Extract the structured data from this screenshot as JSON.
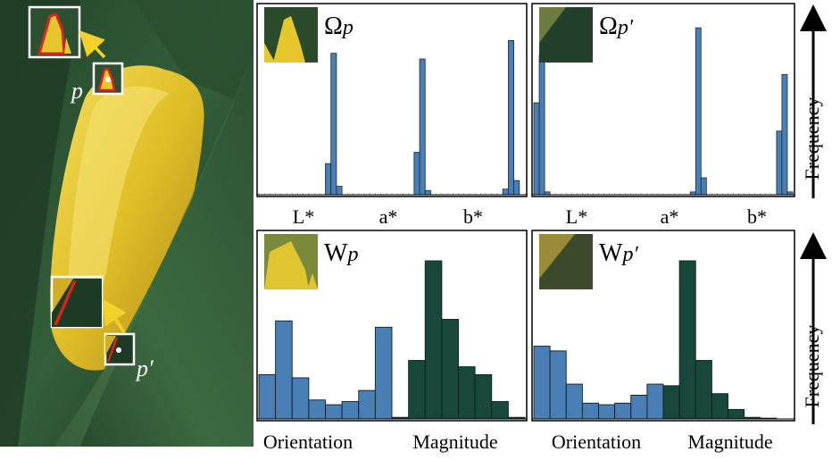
{
  "photo": {
    "label_p_main": "p",
    "label_p_prime": "′",
    "colors": {
      "leaf_dark": "#1d3a22",
      "leaf_mid": "#2f5a35",
      "petal": "#e6c72b",
      "petal_shadow": "#b8951a",
      "contour": "#d8231f",
      "arrow": "#f2d12a"
    }
  },
  "labels": {
    "omega": "Ω",
    "w": "W",
    "sub_p": "p",
    "prime": "′",
    "frequency": "Frequency"
  },
  "chart_data": [
    {
      "id": "omega-p",
      "type": "bar",
      "title_symbol": "Ω",
      "subscript": "p",
      "group_labels": [
        "L*",
        "a*",
        "b*"
      ],
      "bins_per_group": 16,
      "color": "#4a7fb5",
      "series": [
        {
          "group": "L*",
          "values": [
            0,
            0,
            0,
            0,
            0,
            0,
            0,
            0,
            0,
            0,
            0,
            0,
            0.22,
            1.0,
            0.06,
            0
          ]
        },
        {
          "group": "a*",
          "values": [
            0,
            0,
            0,
            0,
            0,
            0,
            0,
            0,
            0,
            0,
            0,
            0,
            0.3,
            0.96,
            0.03,
            0
          ]
        },
        {
          "group": "b*",
          "values": [
            0,
            0,
            0,
            0,
            0,
            0,
            0,
            0,
            0,
            0,
            0,
            0,
            0.04,
            1.09,
            0.1,
            0
          ]
        }
      ],
      "ylabel": "Frequency"
    },
    {
      "id": "omega-p-prime",
      "type": "bar",
      "title_symbol": "Ω",
      "subscript": "p′",
      "group_labels": [
        "L*",
        "a*",
        "b*"
      ],
      "bins_per_group": 16,
      "color": "#4a7fb5",
      "series": [
        {
          "group": "L*",
          "values": [
            0.65,
            0.99,
            0.02,
            0,
            0,
            0,
            0,
            0,
            0,
            0,
            0,
            0,
            0,
            0,
            0,
            0
          ]
        },
        {
          "group": "a*",
          "values": [
            0,
            0,
            0,
            0,
            0,
            0,
            0,
            0,
            0,
            0,
            0,
            0,
            0,
            0.02,
            1.18,
            0.12
          ]
        },
        {
          "group": "b*",
          "values": [
            0,
            0,
            0,
            0,
            0,
            0,
            0,
            0,
            0,
            0,
            0,
            0,
            0,
            0.45,
            0.85,
            0.02
          ]
        }
      ],
      "ylabel": "Frequency"
    },
    {
      "id": "w-p",
      "type": "bar",
      "title_symbol": "W",
      "subscript": "p",
      "group_labels": [
        "Orientation",
        "Magnitude"
      ],
      "series": [
        {
          "name": "Orientation",
          "color": "#4a7fb5",
          "values": [
            0.28,
            0.62,
            0.26,
            0.12,
            0.09,
            0.11,
            0.18,
            0.58
          ]
        },
        {
          "name": "Magnitude",
          "color": "#17483a",
          "values": [
            0.01,
            0.37,
            1.0,
            0.63,
            0.33,
            0.28,
            0.11,
            0.01
          ]
        }
      ],
      "ylabel": "Frequency"
    },
    {
      "id": "w-p-prime",
      "type": "bar",
      "title_symbol": "W",
      "subscript": "p′",
      "group_labels": [
        "Orientation",
        "Magnitude"
      ],
      "series": [
        {
          "name": "Orientation",
          "color": "#4a7fb5",
          "values": [
            0.46,
            0.43,
            0.22,
            0.1,
            0.09,
            0.1,
            0.15,
            0.22
          ]
        },
        {
          "name": "Magnitude",
          "color": "#17483a",
          "values": [
            0.21,
            1.0,
            0.37,
            0.16,
            0.06,
            0.01,
            0.005,
            0
          ]
        }
      ],
      "ylabel": "Frequency"
    }
  ]
}
